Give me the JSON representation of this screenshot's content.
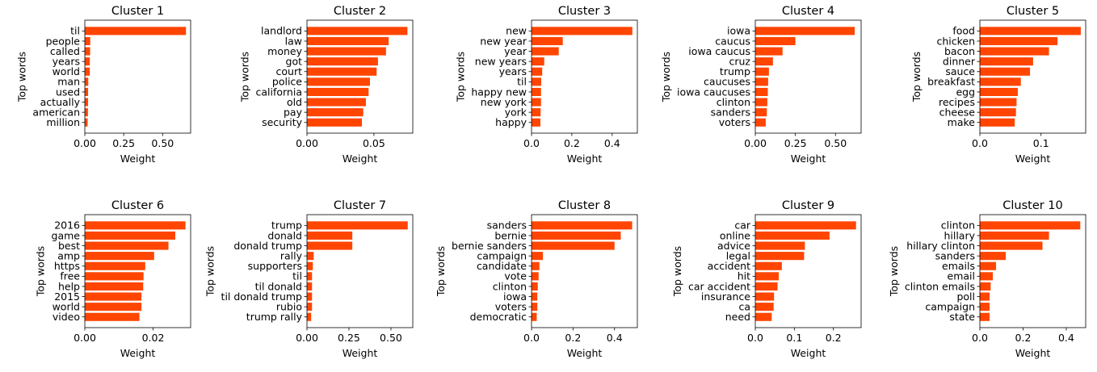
{
  "colors": {
    "bar": "#ff4500",
    "axis": "#000000",
    "background": "#ffffff"
  },
  "chart_data": [
    {
      "type": "bar",
      "orientation": "horizontal",
      "title": "Cluster 1",
      "xlabel": "Weight",
      "ylabel": "Top words",
      "categories": [
        "til",
        "people",
        "called",
        "years",
        "world",
        "man",
        "used",
        "actually",
        "american",
        "million"
      ],
      "values": [
        0.65,
        0.035,
        0.034,
        0.032,
        0.032,
        0.022,
        0.021,
        0.021,
        0.02,
        0.018
      ],
      "xlim": [
        0,
        0.68
      ],
      "xticks": [
        0,
        0.25,
        0.5
      ],
      "xtick_labels": [
        "0.00",
        "0.25",
        "0.50"
      ]
    },
    {
      "type": "bar",
      "orientation": "horizontal",
      "title": "Cluster 2",
      "xlabel": "Weight",
      "ylabel": "Top words",
      "categories": [
        "landlord",
        "law",
        "money",
        "got",
        "court",
        "police",
        "california",
        "old",
        "pay",
        "security"
      ],
      "values": [
        0.075,
        0.061,
        0.059,
        0.053,
        0.052,
        0.047,
        0.046,
        0.044,
        0.042,
        0.041
      ],
      "xlim": [
        0,
        0.079
      ],
      "xticks": [
        0,
        0.05
      ],
      "xtick_labels": [
        "0.00",
        "0.05"
      ]
    },
    {
      "type": "bar",
      "orientation": "horizontal",
      "title": "Cluster 3",
      "xlabel": "Weight",
      "ylabel": "Top words",
      "categories": [
        "new",
        "new year",
        "year",
        "new years",
        "years",
        "til",
        "happy new",
        "new york",
        "york",
        "happy"
      ],
      "values": [
        0.5,
        0.155,
        0.135,
        0.063,
        0.053,
        0.048,
        0.047,
        0.047,
        0.045,
        0.044
      ],
      "xlim": [
        0,
        0.525
      ],
      "xticks": [
        0,
        0.2,
        0.4
      ],
      "xtick_labels": [
        "0.0",
        "0.2",
        "0.4"
      ]
    },
    {
      "type": "bar",
      "orientation": "horizontal",
      "title": "Cluster 4",
      "xlabel": "Weight",
      "ylabel": "Top words",
      "categories": [
        "iowa",
        "caucus",
        "iowa caucus",
        "cruz",
        "trump",
        "caucuses",
        "iowa caucuses",
        "clinton",
        "sanders",
        "voters"
      ],
      "values": [
        0.62,
        0.25,
        0.17,
        0.11,
        0.085,
        0.08,
        0.078,
        0.075,
        0.072,
        0.065
      ],
      "xlim": [
        0,
        0.66
      ],
      "xticks": [
        0,
        0.25,
        0.5
      ],
      "xtick_labels": [
        "0.00",
        "0.25",
        "0.50"
      ]
    },
    {
      "type": "bar",
      "orientation": "horizontal",
      "title": "Cluster 5",
      "xlabel": "Weight",
      "ylabel": "Top words",
      "categories": [
        "food",
        "chicken",
        "bacon",
        "dinner",
        "sauce",
        "breakfast",
        "egg",
        "recipes",
        "cheese",
        "make"
      ],
      "values": [
        0.165,
        0.127,
        0.113,
        0.087,
        0.082,
        0.067,
        0.062,
        0.06,
        0.059,
        0.057
      ],
      "xlim": [
        0,
        0.173
      ],
      "xticks": [
        0,
        0.1
      ],
      "xtick_labels": [
        "0.0",
        "0.1"
      ]
    },
    {
      "type": "bar",
      "orientation": "horizontal",
      "title": "Cluster 6",
      "xlabel": "Weight",
      "ylabel": "Top words",
      "categories": [
        "2016",
        "game",
        "best",
        "amp",
        "https",
        "free",
        "help",
        "2015",
        "world",
        "video"
      ],
      "values": [
        0.0295,
        0.0265,
        0.0245,
        0.0203,
        0.0177,
        0.0172,
        0.0171,
        0.0166,
        0.0166,
        0.016
      ],
      "xlim": [
        0,
        0.031
      ],
      "xticks": [
        0,
        0.02
      ],
      "xtick_labels": [
        "0.00",
        "0.02"
      ]
    },
    {
      "type": "bar",
      "orientation": "horizontal",
      "title": "Cluster 7",
      "xlabel": "Weight",
      "ylabel": "Top words",
      "categories": [
        "trump",
        "donald",
        "donald trump",
        "rally",
        "supporters",
        "til",
        "til donald",
        "til donald trump",
        "rubio",
        "trump rally"
      ],
      "values": [
        0.6,
        0.27,
        0.27,
        0.04,
        0.035,
        0.03,
        0.03,
        0.03,
        0.03,
        0.025
      ],
      "xlim": [
        0,
        0.63
      ],
      "xticks": [
        0,
        0.25,
        0.5
      ],
      "xtick_labels": [
        "0.00",
        "0.25",
        "0.50"
      ]
    },
    {
      "type": "bar",
      "orientation": "horizontal",
      "title": "Cluster 8",
      "xlabel": "Weight",
      "ylabel": "Top words",
      "categories": [
        "sanders",
        "bernie",
        "bernie sanders",
        "campaign",
        "candidate",
        "vote",
        "clinton",
        "iowa",
        "voters",
        "democratic"
      ],
      "values": [
        0.485,
        0.43,
        0.4,
        0.055,
        0.038,
        0.034,
        0.03,
        0.028,
        0.028,
        0.025
      ],
      "xlim": [
        0,
        0.51
      ],
      "xticks": [
        0,
        0.2,
        0.4
      ],
      "xtick_labels": [
        "0.0",
        "0.2",
        "0.4"
      ]
    },
    {
      "type": "bar",
      "orientation": "horizontal",
      "title": "Cluster 9",
      "xlabel": "Weight",
      "ylabel": "Top words",
      "categories": [
        "car",
        "online",
        "advice",
        "legal",
        "accident",
        "hit",
        "car accident",
        "insurance",
        "ca",
        "need"
      ],
      "values": [
        0.258,
        0.19,
        0.127,
        0.125,
        0.068,
        0.06,
        0.057,
        0.048,
        0.047,
        0.042
      ],
      "xlim": [
        0,
        0.271
      ],
      "xticks": [
        0,
        0.1,
        0.2
      ],
      "xtick_labels": [
        "0.0",
        "0.1",
        "0.2"
      ]
    },
    {
      "type": "bar",
      "orientation": "horizontal",
      "title": "Cluster 10",
      "xlabel": "Weight",
      "ylabel": "Top words",
      "categories": [
        "clinton",
        "hillary",
        "hillary clinton",
        "sanders",
        "emails",
        "email",
        "clinton emails",
        "poll",
        "campaign",
        "state"
      ],
      "values": [
        0.465,
        0.32,
        0.29,
        0.12,
        0.075,
        0.06,
        0.05,
        0.045,
        0.045,
        0.045
      ],
      "xlim": [
        0,
        0.49
      ],
      "xticks": [
        0,
        0.2,
        0.4
      ],
      "xtick_labels": [
        "0.0",
        "0.2",
        "0.4"
      ]
    }
  ]
}
